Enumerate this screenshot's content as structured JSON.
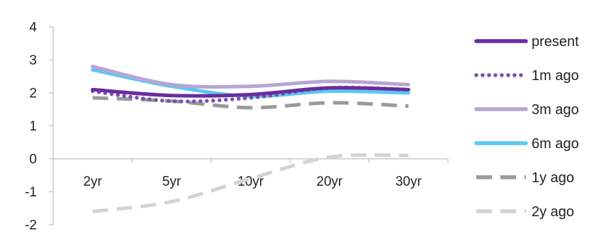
{
  "chart_data": {
    "type": "line",
    "categories": [
      "2yr",
      "5yr",
      "10yr",
      "20yr",
      "30yr"
    ],
    "ylim": [
      -2,
      4
    ],
    "yticks": [
      -2,
      -1,
      0,
      1,
      2,
      3,
      4
    ],
    "grid": false,
    "legend_position": "right",
    "series": [
      {
        "name": "present",
        "values": [
          2.1,
          1.92,
          1.95,
          2.15,
          2.1
        ],
        "color": "#6a2c9e",
        "style": "solid"
      },
      {
        "name": "1m ago",
        "values": [
          2.05,
          1.75,
          1.85,
          2.15,
          2.1
        ],
        "color": "#7b4fb0",
        "style": "dotted"
      },
      {
        "name": "3m ago",
        "values": [
          2.8,
          2.25,
          2.2,
          2.35,
          2.25
        ],
        "color": "#b7a5d3",
        "style": "solid"
      },
      {
        "name": "6m ago",
        "values": [
          2.7,
          2.2,
          1.9,
          2.05,
          2.0
        ],
        "color": "#5ac8f2",
        "style": "solid"
      },
      {
        "name": "1y ago",
        "values": [
          1.85,
          1.75,
          1.55,
          1.7,
          1.6
        ],
        "color": "#9a9a9a",
        "style": "dashed"
      },
      {
        "name": "2y ago",
        "values": [
          -1.6,
          -1.3,
          -0.6,
          0.05,
          0.1
        ],
        "color": "#d3d3d3",
        "style": "dashed"
      }
    ]
  }
}
